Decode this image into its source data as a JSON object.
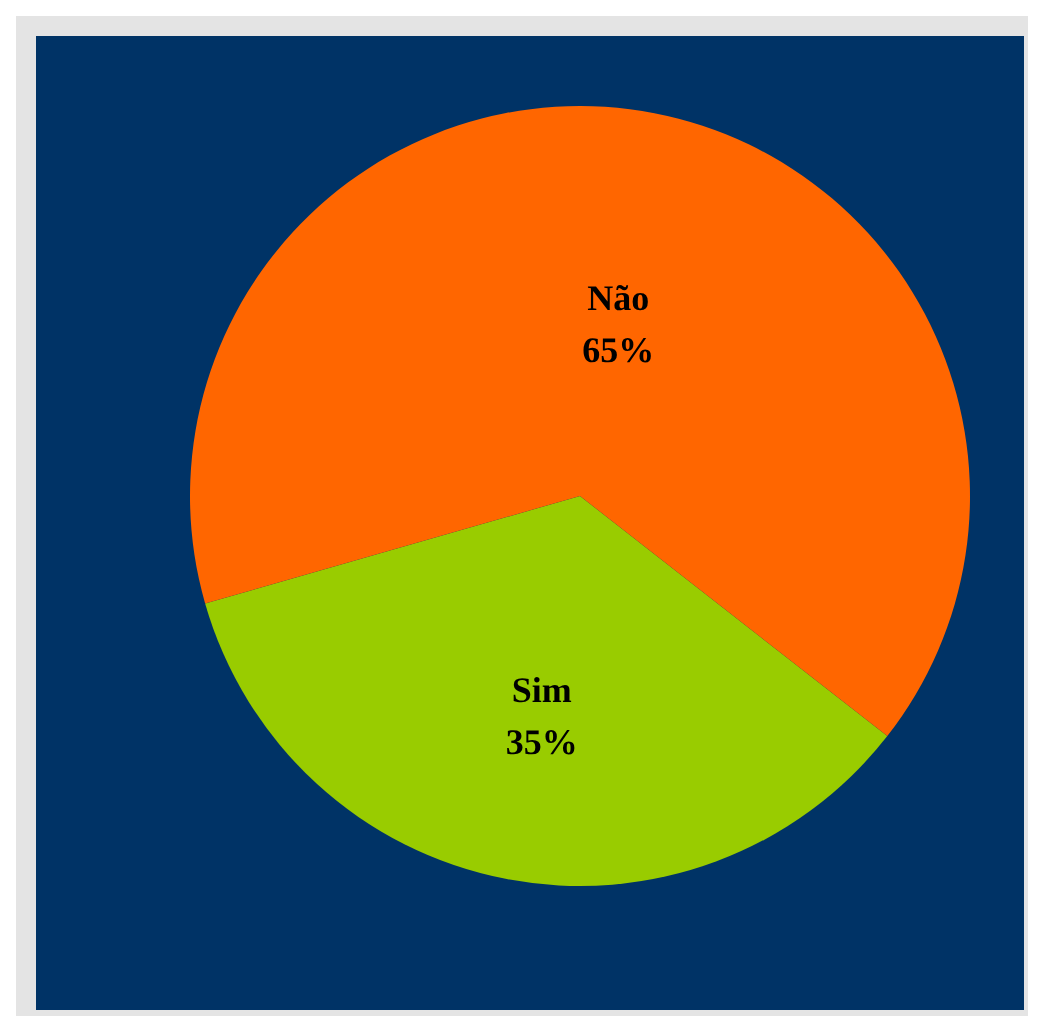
{
  "chart_data": {
    "type": "pie",
    "categories": [
      "Sim",
      "Não"
    ],
    "values": [
      35,
      65
    ],
    "colors": [
      "#99cc00",
      "#ff6600"
    ],
    "value_labels": [
      "35%",
      "65%"
    ]
  }
}
